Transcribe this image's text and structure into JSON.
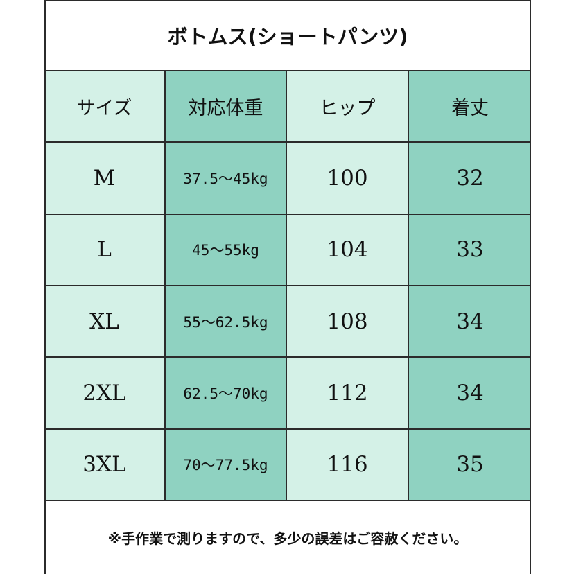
{
  "title": "ボトムス(ショートパンツ)",
  "headers": [
    "サイズ",
    "対応体重",
    "ヒップ",
    "着丈"
  ],
  "rows": [
    {
      "size": "M",
      "weight": "37.5～45kg",
      "hip": "100",
      "length": "32"
    },
    {
      "size": "L",
      "weight": "45～55kg",
      "hip": "104",
      "length": "33"
    },
    {
      "size": "XL",
      "weight": "55～62.5kg",
      "hip": "108",
      "length": "34"
    },
    {
      "size": "2XL",
      "weight": "62.5～70kg",
      "hip": "112",
      "length": "34"
    },
    {
      "size": "3XL",
      "weight": "70～77.5kg",
      "hip": "116",
      "length": "35"
    }
  ],
  "note": "※手作業で測りますので、多少の誤差はご容赦ください。",
  "colors": {
    "light": "#d4f1e7",
    "dark": "#8fd2c1",
    "border": "#2b2b2b"
  }
}
